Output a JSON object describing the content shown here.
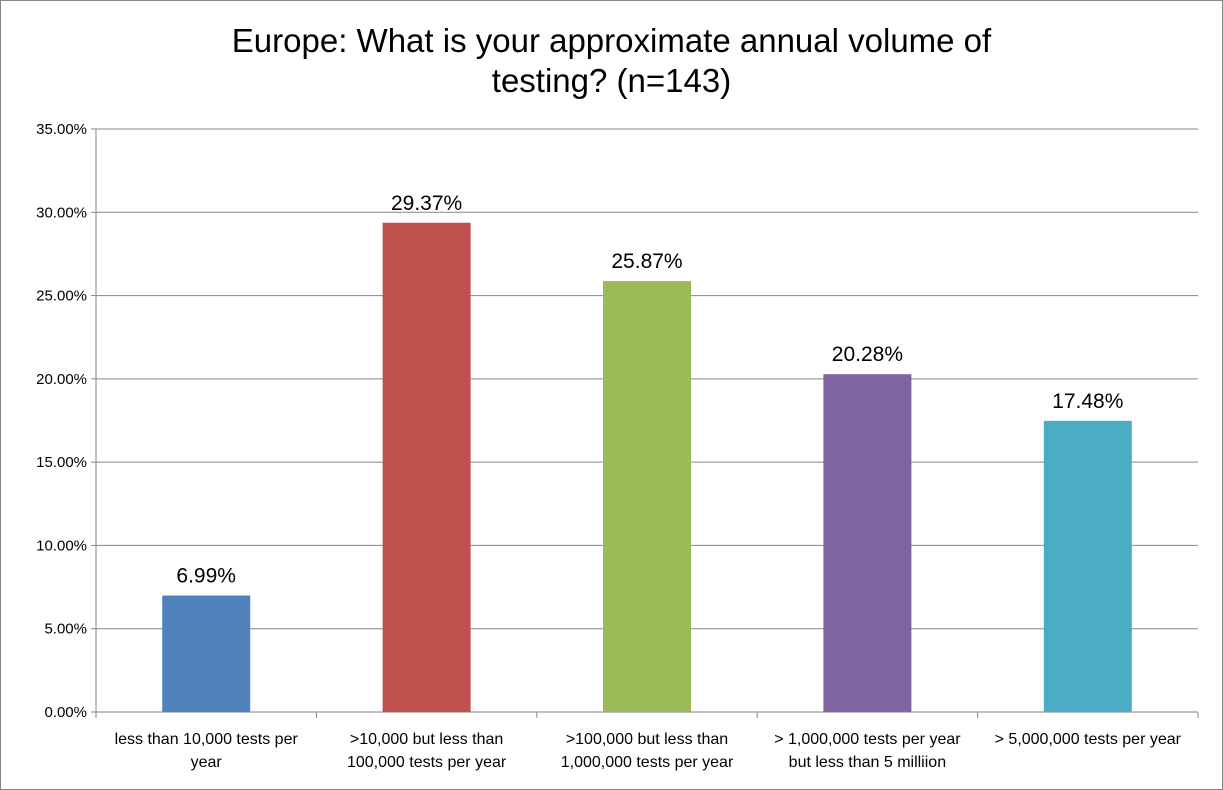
{
  "chart_data": {
    "type": "bar",
    "title_lines": [
      "Europe: What is your approximate annual volume of",
      "testing? (n=143)"
    ],
    "categories": [
      [
        "less than 10,000 tests per",
        "year"
      ],
      [
        ">10,000 but less than",
        "100,000 tests per year"
      ],
      [
        ">100,000 but less than",
        "1,000,000 tests per year"
      ],
      [
        "> 1,000,000 tests per year",
        "but less than 5 milliion"
      ],
      [
        "> 5,000,000 tests per year"
      ]
    ],
    "values": [
      6.99,
      29.37,
      25.87,
      20.28,
      17.48
    ],
    "data_labels": [
      "6.99%",
      "29.37%",
      "25.87%",
      "20.28%",
      "17.48%"
    ],
    "colors": [
      "#4F81BD",
      "#C0504D",
      "#9BBB59",
      "#8064A2",
      "#4BACC6"
    ],
    "ylim": [
      0,
      35
    ],
    "yticks": [
      "0.00%",
      "5.00%",
      "10.00%",
      "15.00%",
      "20.00%",
      "25.00%",
      "30.00%",
      "35.00%"
    ],
    "grid": true,
    "legend": "none",
    "xlabel": "",
    "ylabel": ""
  }
}
